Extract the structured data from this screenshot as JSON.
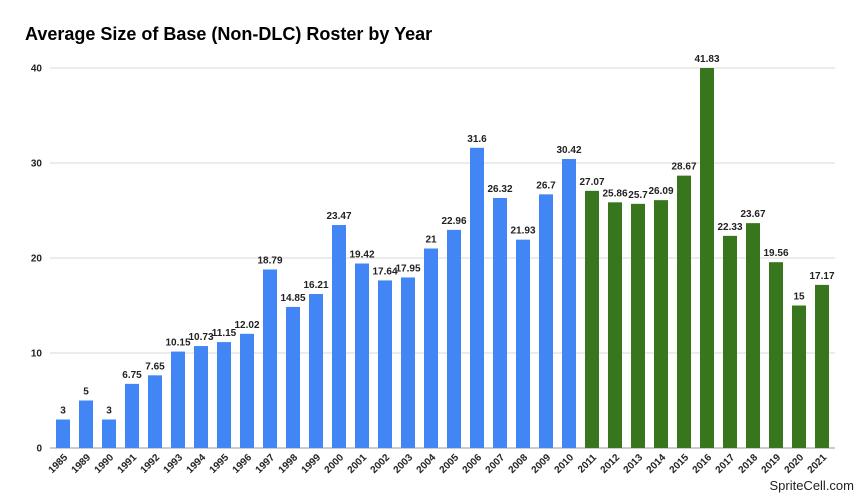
{
  "chart_data": {
    "type": "bar",
    "title": "Average Size of Base (Non-DLC) Roster by Year",
    "xlabel": "",
    "ylabel": "",
    "ylim": [
      0,
      40
    ],
    "yticks": [
      0,
      10,
      20,
      30,
      40
    ],
    "grid": true,
    "legend": "none",
    "categories": [
      "1985",
      "1989",
      "1990",
      "1991",
      "1992",
      "1993",
      "1994",
      "1995",
      "1996",
      "1997",
      "1998",
      "1999",
      "2000",
      "2001",
      "2002",
      "2003",
      "2004",
      "2005",
      "2006",
      "2007",
      "2008",
      "2009",
      "2010",
      "2011",
      "2012",
      "2013",
      "2014",
      "2015",
      "2016",
      "2017",
      "2018",
      "2019",
      "2020",
      "2021"
    ],
    "values": [
      3,
      5,
      3,
      6.75,
      7.65,
      10.15,
      10.73,
      11.15,
      12.02,
      18.79,
      14.85,
      16.21,
      23.47,
      19.42,
      17.64,
      17.95,
      21,
      22.96,
      31.6,
      26.32,
      21.93,
      26.7,
      30.42,
      27.07,
      25.86,
      25.7,
      26.09,
      28.67,
      41.83,
      22.33,
      23.67,
      19.56,
      15,
      17.17
    ],
    "data_labels": [
      "3",
      "5",
      "3",
      "6.75",
      "7.65",
      "10.15",
      "10.73",
      "11.15",
      "12.02",
      "18.79",
      "14.85",
      "16.21",
      "23.47",
      "19.42",
      "17.64",
      "17.95",
      "21",
      "22.96",
      "31.6",
      "26.32",
      "21.93",
      "26.7",
      "30.42",
      "27.07",
      "25.86",
      "25.7",
      "26.09",
      "28.67",
      "41.83",
      "22.33",
      "23.67",
      "19.56",
      "15",
      "17.17"
    ],
    "colors": {
      "before_2011": "#4285f4",
      "from_2011": "#38761d"
    }
  },
  "watermark": "SpriteCell.com"
}
